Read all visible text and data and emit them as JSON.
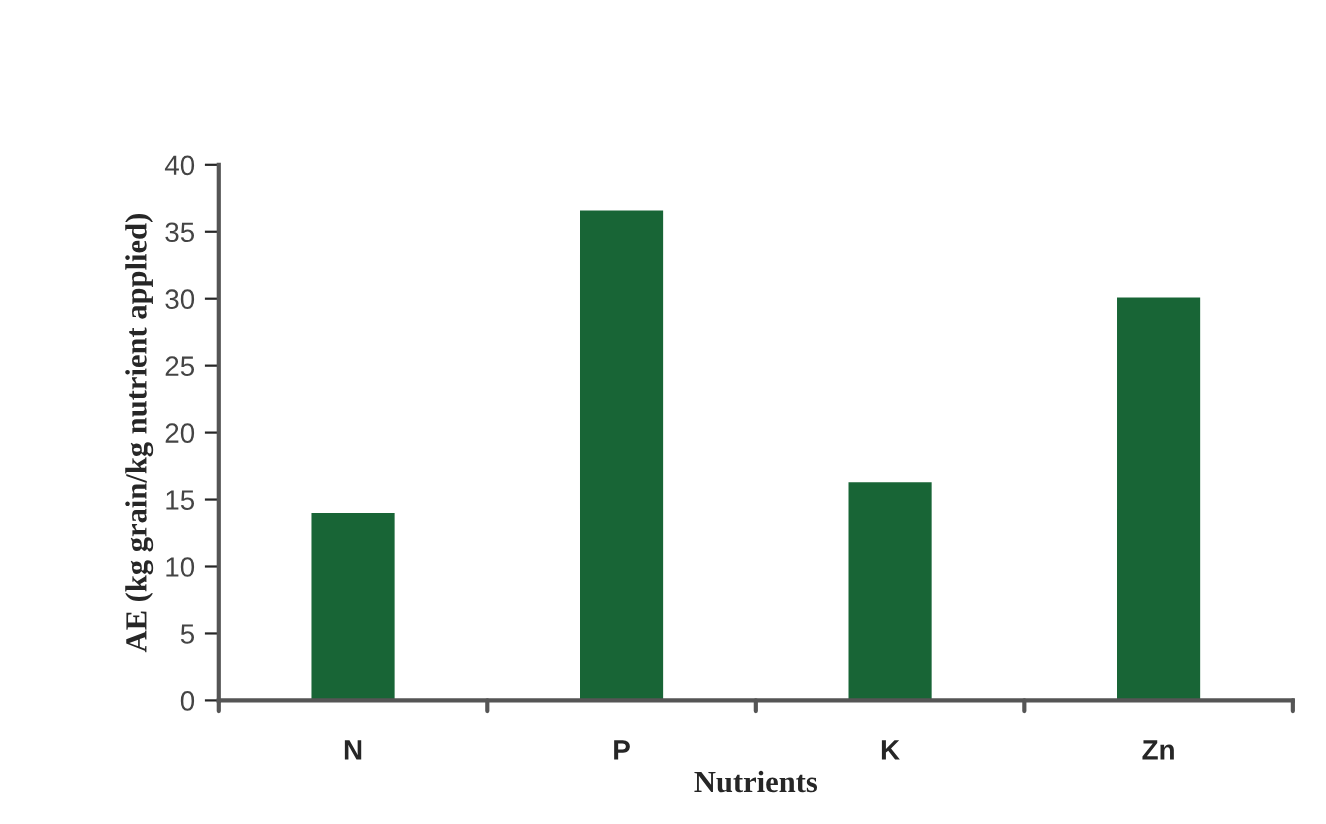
{
  "chart_data": {
    "type": "bar",
    "xlabel": "Nutrients",
    "ylabel": "AE (kg grain/kg nutrient applied)",
    "categories": [
      "N",
      "P",
      "K",
      "Zn"
    ],
    "values": [
      14.1,
      36.7,
      16.4,
      30.2
    ],
    "color": "#186536",
    "ylim": [
      0,
      40
    ],
    "yticks": [
      0,
      5,
      10,
      15,
      20,
      25,
      30,
      35,
      40
    ],
    "grid": false,
    "legend": false
  }
}
